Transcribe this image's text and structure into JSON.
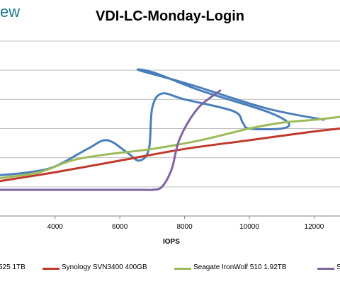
{
  "brand": "ew",
  "chart_data": {
    "type": "line",
    "title": "VDI-LC-Monday-Login",
    "xlabel": "IOPS",
    "ylabel": "",
    "xlim": [
      2300,
      12800
    ],
    "x_ticks": [
      4000,
      6000,
      8000,
      10000,
      12000
    ],
    "ylim": [
      0,
      6
    ],
    "grid": true,
    "legend_position": "bottom",
    "series": [
      {
        "name": "525 1TB",
        "color": "#4a7ebb",
        "points": [
          [
            2300,
            1.4
          ],
          [
            3200,
            1.5
          ],
          [
            4000,
            1.7
          ],
          [
            5000,
            2.3
          ],
          [
            5600,
            2.6
          ],
          [
            6200,
            2.2
          ],
          [
            6600,
            1.9
          ],
          [
            6900,
            2.3
          ],
          [
            7000,
            3.7
          ],
          [
            7300,
            4.2
          ],
          [
            8000,
            4.0
          ],
          [
            9500,
            3.6
          ],
          [
            9800,
            3.2
          ],
          [
            10000,
            3.0
          ],
          [
            11000,
            3.0
          ],
          [
            11200,
            3.2
          ],
          [
            10500,
            3.6
          ],
          [
            8500,
            4.3
          ],
          [
            7100,
            4.9
          ],
          [
            6600,
            5.0
          ],
          [
            8200,
            4.5
          ],
          [
            10500,
            3.7
          ],
          [
            12300,
            3.3
          ]
        ]
      },
      {
        "name": "Synology SVN3400 400GB",
        "color": "#c0392b",
        "points": [
          [
            2300,
            1.2
          ],
          [
            4000,
            1.5
          ],
          [
            6000,
            1.9
          ],
          [
            8000,
            2.3
          ],
          [
            10000,
            2.6
          ],
          [
            12000,
            2.9
          ],
          [
            12800,
            3.0
          ]
        ]
      },
      {
        "name": "Seagate IronWolf 510 1.92TB",
        "color": "#9bbb59",
        "points": [
          [
            2300,
            1.3
          ],
          [
            3500,
            1.5
          ],
          [
            4500,
            1.9
          ],
          [
            5500,
            2.1
          ],
          [
            7000,
            2.3
          ],
          [
            8500,
            2.6
          ],
          [
            10000,
            3.0
          ],
          [
            11000,
            3.2
          ],
          [
            12000,
            3.3
          ],
          [
            12800,
            3.4
          ]
        ]
      },
      {
        "name": "S",
        "color": "#8064a2",
        "points": [
          [
            2300,
            0.9
          ],
          [
            6500,
            0.9
          ],
          [
            7000,
            0.9
          ],
          [
            7300,
            1.0
          ],
          [
            7600,
            1.6
          ],
          [
            7800,
            2.5
          ],
          [
            8100,
            3.2
          ],
          [
            8500,
            3.8
          ],
          [
            9100,
            4.3
          ]
        ]
      }
    ]
  }
}
